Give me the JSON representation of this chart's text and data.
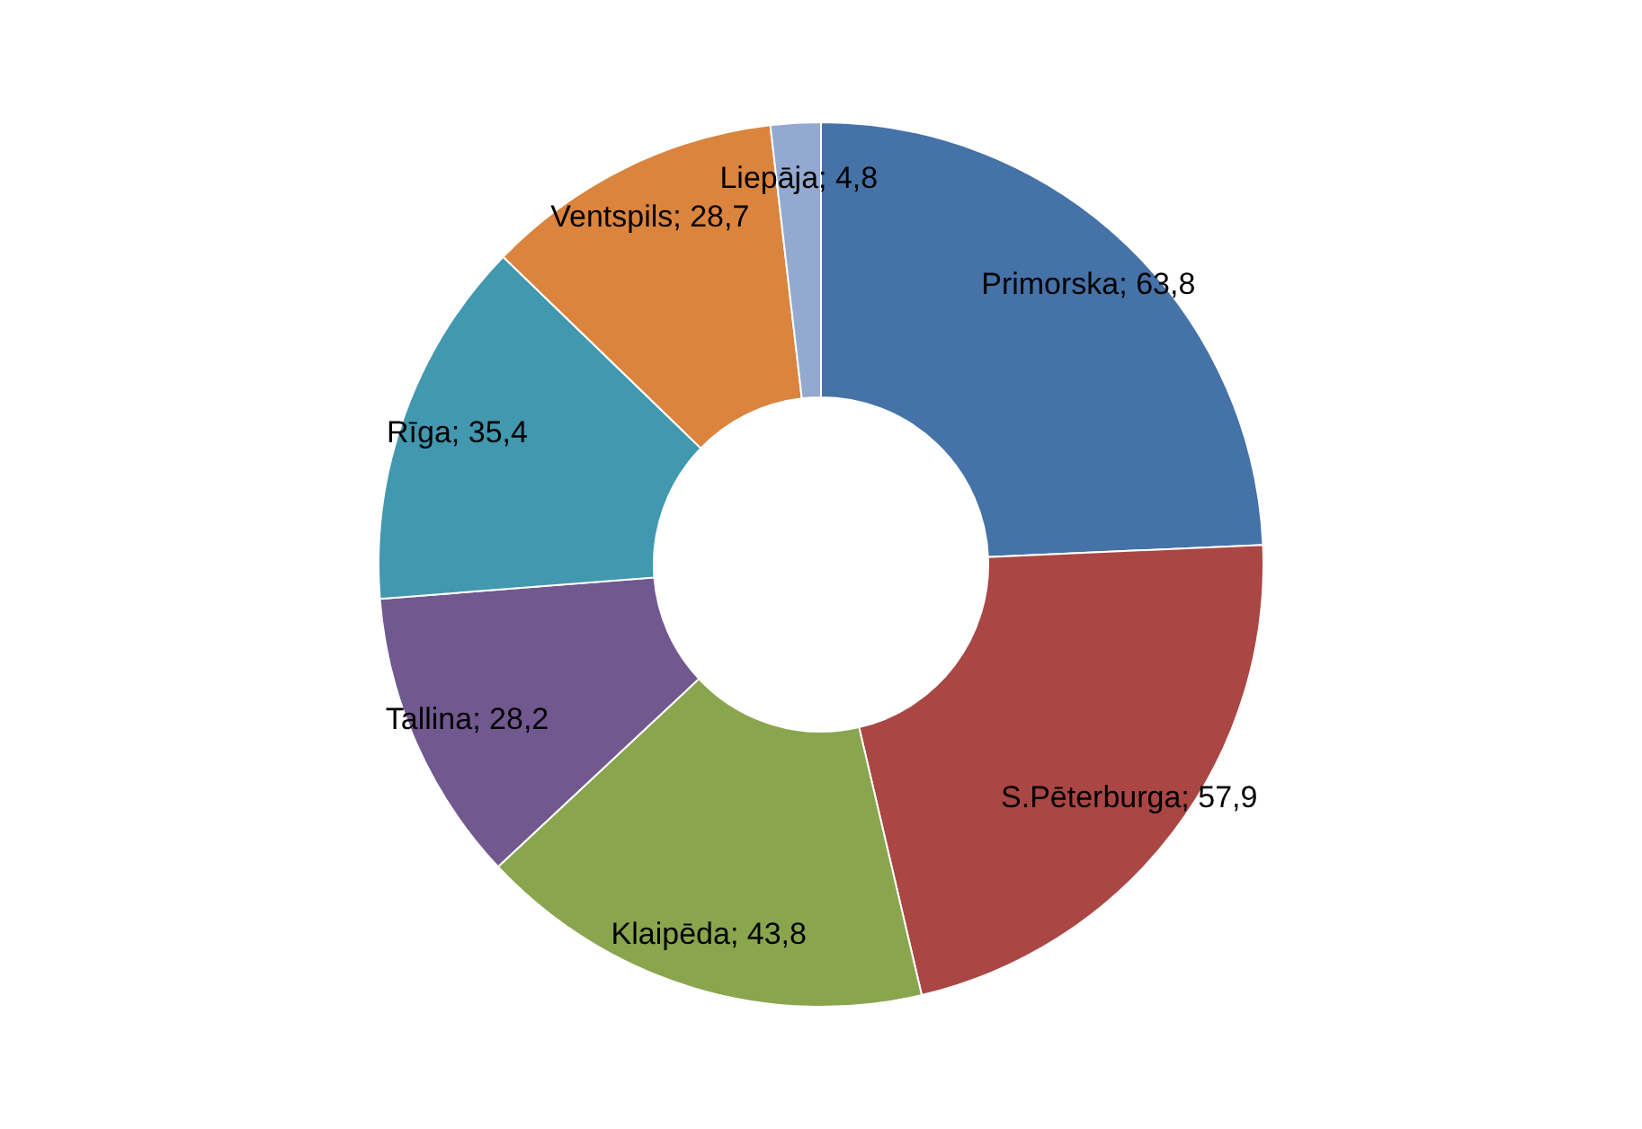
{
  "chart_data": {
    "type": "donut",
    "categories": [
      "Primorska",
      "S.Pēterburga",
      "Klaipēda",
      "Tallina",
      "Rīga",
      "Ventspils",
      "Liepāja"
    ],
    "values": [
      63.8,
      57.9,
      43.8,
      28.2,
      35.4,
      28.7,
      4.8
    ],
    "value_labels": [
      "63,8",
      "57,9",
      "43,8",
      "28,2",
      "35,4",
      "28,7",
      "4,8"
    ],
    "colors": [
      "#4572a7",
      "#aa4643",
      "#89a54e",
      "#71588f",
      "#4198af",
      "#db843d",
      "#93a9cf"
    ]
  }
}
